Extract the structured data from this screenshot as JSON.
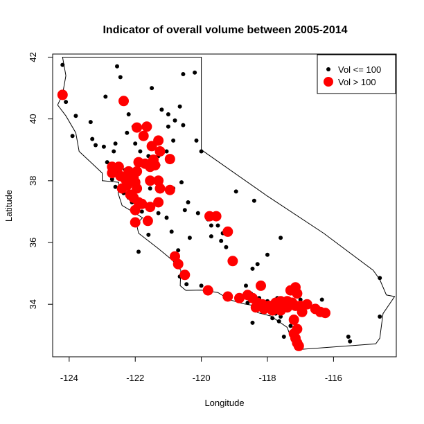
{
  "chart_data": {
    "type": "scatter",
    "title": "Indicator of overall volume between 2005-2014",
    "xlabel": "Longitude",
    "ylabel": "Latitude",
    "xlim": [
      -124.5,
      -114.1
    ],
    "ylim": [
      32.3,
      42.1
    ],
    "xticks": [
      -124,
      -122,
      -120,
      -118,
      -116
    ],
    "yticks": [
      34,
      36,
      38,
      40,
      42
    ],
    "grid": false,
    "legend_position": "top-right",
    "legend": [
      {
        "label": "Vol <= 100",
        "color": "#000000",
        "marker": "small-dot"
      },
      {
        "label": "Vol > 100",
        "color": "#ff0000",
        "marker": "large-dot"
      }
    ],
    "outline": [
      [
        -124.2,
        42.0
      ],
      [
        -120.0,
        42.0
      ],
      [
        -120.0,
        39.0
      ],
      [
        -118.0,
        37.5
      ],
      [
        -116.3,
        36.3
      ],
      [
        -114.8,
        35.1
      ],
      [
        -114.6,
        34.8
      ],
      [
        -114.4,
        34.3
      ],
      [
        -114.15,
        34.25
      ],
      [
        -114.5,
        33.7
      ],
      [
        -114.55,
        33.3
      ],
      [
        -114.6,
        32.9
      ],
      [
        -114.72,
        32.72
      ],
      [
        -117.12,
        32.53
      ],
      [
        -117.25,
        32.8
      ],
      [
        -117.4,
        33.25
      ],
      [
        -117.9,
        33.62
      ],
      [
        -118.3,
        33.73
      ],
      [
        -118.42,
        33.96
      ],
      [
        -118.75,
        34.02
      ],
      [
        -119.15,
        34.15
      ],
      [
        -119.5,
        34.38
      ],
      [
        -120.0,
        34.46
      ],
      [
        -120.47,
        34.45
      ],
      [
        -120.64,
        34.6
      ],
      [
        -120.62,
        35.1
      ],
      [
        -120.88,
        35.43
      ],
      [
        -121.3,
        35.8
      ],
      [
        -121.9,
        36.3
      ],
      [
        -121.96,
        36.6
      ],
      [
        -121.78,
        36.8
      ],
      [
        -122.02,
        36.96
      ],
      [
        -122.4,
        37.2
      ],
      [
        -122.52,
        37.6
      ],
      [
        -122.5,
        37.8
      ],
      [
        -122.5,
        37.95
      ],
      [
        -123.0,
        38.0
      ],
      [
        -123.0,
        38.25
      ],
      [
        -123.7,
        38.95
      ],
      [
        -123.8,
        39.55
      ],
      [
        -124.1,
        40.1
      ],
      [
        -124.35,
        40.45
      ],
      [
        -124.2,
        40.8
      ],
      [
        -124.1,
        41.4
      ],
      [
        -124.2,
        42.0
      ]
    ],
    "series": [
      {
        "name": "Vol <= 100",
        "color": "#000000",
        "points": [
          [
            -124.2,
            41.75
          ],
          [
            -124.15,
            40.85
          ],
          [
            -124.1,
            40.55
          ],
          [
            -123.8,
            40.1
          ],
          [
            -123.9,
            39.45
          ],
          [
            -123.3,
            39.35
          ],
          [
            -123.2,
            39.15
          ],
          [
            -122.95,
            39.1
          ],
          [
            -122.85,
            38.6
          ],
          [
            -122.7,
            38.45
          ],
          [
            -122.6,
            39.2
          ],
          [
            -122.65,
            38.95
          ],
          [
            -122.9,
            40.72
          ],
          [
            -122.55,
            41.7
          ],
          [
            -122.45,
            41.35
          ],
          [
            -122.4,
            40.55
          ],
          [
            -122.2,
            40.15
          ],
          [
            -122.25,
            39.55
          ],
          [
            -122.0,
            39.2
          ],
          [
            -121.85,
            38.95
          ],
          [
            -121.6,
            38.8
          ],
          [
            -121.45,
            38.65
          ],
          [
            -121.3,
            38.5
          ],
          [
            -121.3,
            38.8
          ],
          [
            -121.05,
            38.95
          ],
          [
            -120.85,
            39.3
          ],
          [
            -121.0,
            39.75
          ],
          [
            -120.8,
            39.95
          ],
          [
            -120.65,
            40.4
          ],
          [
            -120.55,
            39.8
          ],
          [
            -121.2,
            40.3
          ],
          [
            -121.5,
            41.0
          ],
          [
            -121.0,
            40.15
          ],
          [
            -120.55,
            41.45
          ],
          [
            -120.2,
            41.5
          ],
          [
            -120.15,
            39.3
          ],
          [
            -120.0,
            38.95
          ],
          [
            -122.6,
            38.3
          ],
          [
            -122.7,
            38.05
          ],
          [
            -122.6,
            37.8
          ],
          [
            -122.45,
            37.75
          ],
          [
            -122.3,
            37.95
          ],
          [
            -122.35,
            37.6
          ],
          [
            -122.2,
            37.45
          ],
          [
            -122.1,
            37.3
          ],
          [
            -121.9,
            37.35
          ],
          [
            -122.0,
            37.05
          ],
          [
            -121.8,
            37.0
          ],
          [
            -122.3,
            38.35
          ],
          [
            -122.05,
            38.35
          ],
          [
            -121.55,
            37.75
          ],
          [
            -121.3,
            37.9
          ],
          [
            -121.0,
            37.65
          ],
          [
            -120.85,
            37.75
          ],
          [
            -120.6,
            37.95
          ],
          [
            -120.4,
            37.3
          ],
          [
            -120.5,
            37.05
          ],
          [
            -121.3,
            36.95
          ],
          [
            -121.55,
            36.7
          ],
          [
            -121.6,
            36.25
          ],
          [
            -121.05,
            36.8
          ],
          [
            -120.9,
            36.35
          ],
          [
            -120.7,
            35.75
          ],
          [
            -120.35,
            36.15
          ],
          [
            -120.1,
            36.95
          ],
          [
            -119.8,
            36.75
          ],
          [
            -119.7,
            36.55
          ],
          [
            -119.5,
            36.55
          ],
          [
            -119.35,
            36.3
          ],
          [
            -119.4,
            36.05
          ],
          [
            -119.7,
            36.2
          ],
          [
            -119.25,
            35.85
          ],
          [
            -119.0,
            35.4
          ],
          [
            -118.95,
            37.65
          ],
          [
            -118.4,
            37.35
          ],
          [
            -117.6,
            36.15
          ],
          [
            -118.0,
            35.6
          ],
          [
            -118.3,
            35.3
          ],
          [
            -118.45,
            35.15
          ],
          [
            -118.65,
            34.6
          ],
          [
            -118.5,
            34.35
          ],
          [
            -118.25,
            34.2
          ],
          [
            -118.6,
            34.05
          ],
          [
            -118.0,
            34.1
          ],
          [
            -117.7,
            34.2
          ],
          [
            -117.3,
            34.15
          ],
          [
            -117.0,
            34.15
          ],
          [
            -117.55,
            33.9
          ],
          [
            -117.75,
            33.7
          ],
          [
            -117.85,
            33.55
          ],
          [
            -117.65,
            33.45
          ],
          [
            -117.3,
            33.3
          ],
          [
            -117.1,
            33.2
          ],
          [
            -117.15,
            32.95
          ],
          [
            -117.05,
            32.8
          ],
          [
            -117.0,
            32.65
          ],
          [
            -117.6,
            33.6
          ],
          [
            -116.9,
            33.9
          ],
          [
            -116.55,
            33.8
          ],
          [
            -116.35,
            34.15
          ],
          [
            -116.75,
            34.05
          ],
          [
            -117.5,
            32.95
          ],
          [
            -118.45,
            33.4
          ],
          [
            -120.45,
            34.65
          ],
          [
            -120.65,
            34.9
          ],
          [
            -120.0,
            34.6
          ],
          [
            -119.7,
            34.45
          ],
          [
            -115.55,
            32.95
          ],
          [
            -115.5,
            32.8
          ],
          [
            -114.6,
            34.85
          ],
          [
            -114.6,
            33.6
          ],
          [
            -121.9,
            35.7
          ],
          [
            -123.35,
            39.9
          ],
          [
            -122.05,
            39.75
          ]
        ]
      },
      {
        "name": "Vol > 100",
        "color": "#ff0000",
        "points": [
          [
            -124.2,
            40.78
          ],
          [
            -122.35,
            40.58
          ],
          [
            -121.95,
            39.72
          ],
          [
            -121.65,
            39.75
          ],
          [
            -121.75,
            39.45
          ],
          [
            -121.3,
            39.3
          ],
          [
            -121.5,
            39.12
          ],
          [
            -121.25,
            38.95
          ],
          [
            -120.95,
            38.7
          ],
          [
            -121.45,
            38.68
          ],
          [
            -121.4,
            38.5
          ],
          [
            -121.55,
            38.45
          ],
          [
            -121.9,
            38.6
          ],
          [
            -121.7,
            38.55
          ],
          [
            -121.95,
            38.3
          ],
          [
            -121.55,
            38.0
          ],
          [
            -121.3,
            38.0
          ],
          [
            -121.25,
            37.75
          ],
          [
            -120.95,
            37.7
          ],
          [
            -121.3,
            37.3
          ],
          [
            -122.5,
            38.45
          ],
          [
            -122.7,
            38.45
          ],
          [
            -122.7,
            38.25
          ],
          [
            -122.45,
            38.15
          ],
          [
            -122.3,
            38.05
          ],
          [
            -122.2,
            38.3
          ],
          [
            -122.05,
            38.1
          ],
          [
            -122.0,
            37.95
          ],
          [
            -121.95,
            37.75
          ],
          [
            -122.25,
            37.85
          ],
          [
            -122.4,
            37.75
          ],
          [
            -122.15,
            37.55
          ],
          [
            -122.05,
            37.45
          ],
          [
            -121.9,
            37.3
          ],
          [
            -121.8,
            37.25
          ],
          [
            -122.0,
            37.05
          ],
          [
            -122.0,
            36.65
          ],
          [
            -121.62,
            36.7
          ],
          [
            -121.55,
            37.15
          ],
          [
            -120.8,
            35.55
          ],
          [
            -120.7,
            35.3
          ],
          [
            -120.5,
            34.95
          ],
          [
            -119.75,
            36.85
          ],
          [
            -119.55,
            36.85
          ],
          [
            -119.2,
            36.35
          ],
          [
            -119.05,
            35.4
          ],
          [
            -119.8,
            34.45
          ],
          [
            -119.2,
            34.25
          ],
          [
            -118.85,
            34.2
          ],
          [
            -118.6,
            34.3
          ],
          [
            -118.45,
            34.2
          ],
          [
            -118.2,
            34.6
          ],
          [
            -118.3,
            34.05
          ],
          [
            -118.15,
            34.0
          ],
          [
            -118.35,
            33.9
          ],
          [
            -118.1,
            33.85
          ],
          [
            -117.95,
            33.95
          ],
          [
            -117.85,
            33.8
          ],
          [
            -117.75,
            34.05
          ],
          [
            -117.6,
            34.1
          ],
          [
            -117.4,
            34.1
          ],
          [
            -117.25,
            34.05
          ],
          [
            -117.15,
            33.95
          ],
          [
            -117.4,
            33.9
          ],
          [
            -117.6,
            33.8
          ],
          [
            -117.15,
            34.55
          ],
          [
            -117.3,
            34.45
          ],
          [
            -117.1,
            34.35
          ],
          [
            -116.95,
            33.75
          ],
          [
            -116.55,
            33.85
          ],
          [
            -116.4,
            33.75
          ],
          [
            -116.25,
            33.72
          ],
          [
            -117.1,
            33.2
          ],
          [
            -117.2,
            33.05
          ],
          [
            -117.15,
            32.9
          ],
          [
            -117.1,
            32.75
          ],
          [
            -117.05,
            32.65
          ],
          [
            -117.2,
            33.5
          ],
          [
            -117.0,
            33.95
          ],
          [
            -116.8,
            34.0
          ]
        ]
      }
    ]
  }
}
